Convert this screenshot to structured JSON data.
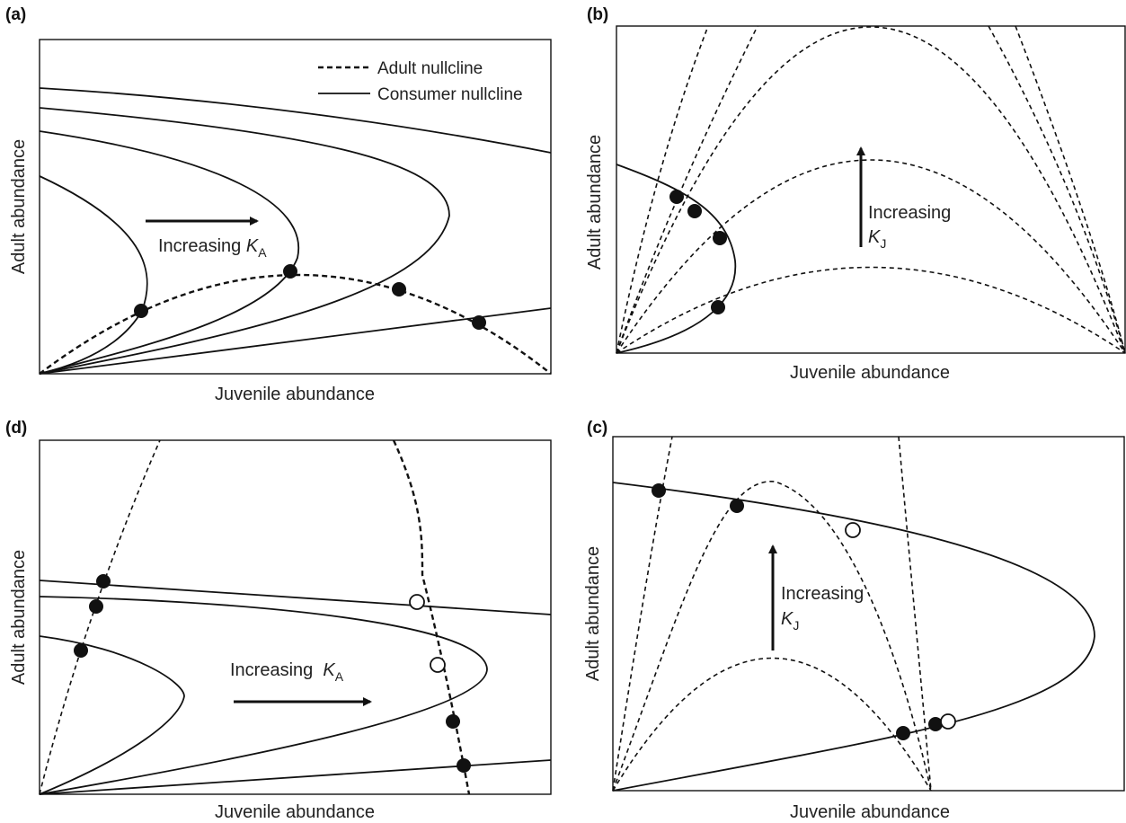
{
  "chart_data": [
    {
      "panel": "(a)",
      "type": "line",
      "xlabel": "Juvenile abundance",
      "ylabel": "Adult abundance",
      "legend": [
        "Adult nullcline",
        "Consumer nullcline"
      ],
      "annotation": {
        "text": "Increasing ",
        "symbol": "K",
        "subscript": "A"
      }
    },
    {
      "panel": "(b)",
      "type": "line",
      "xlabel": "Juvenile abundance",
      "ylabel": "Adult abundance",
      "annotation": {
        "text": "Increasing",
        "symbol": "K",
        "subscript": "J"
      }
    },
    {
      "panel": "(d)",
      "type": "line",
      "xlabel": "Juvenile abundance",
      "ylabel": "Adult abundance",
      "annotation": {
        "text": "Increasing  ",
        "symbol": "K",
        "subscript": "A"
      }
    },
    {
      "panel": "(c)",
      "type": "line",
      "xlabel": "Juvenile abundance",
      "ylabel": "Adult abundance",
      "annotation": {
        "text": "Increasing",
        "symbol": "K",
        "subscript": "J"
      }
    }
  ],
  "colors": {
    "ink": "#111111",
    "open_point_fill": "#ffffff",
    "filled_point": "#111111"
  }
}
